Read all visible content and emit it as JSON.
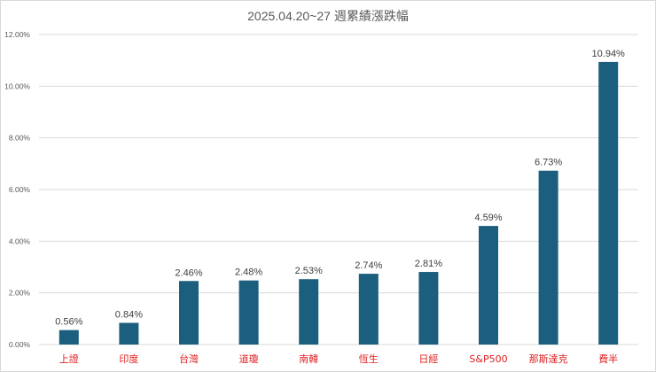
{
  "chart_data": {
    "type": "bar",
    "title": "2025.04.20~27 週累績漲跌幅",
    "categories": [
      "上證",
      "印度",
      "台灣",
      "道瓊",
      "南韓",
      "恆生",
      "日經",
      "S&P500",
      "那斯達克",
      "費半"
    ],
    "values": [
      0.56,
      0.84,
      2.46,
      2.48,
      2.53,
      2.74,
      2.81,
      4.59,
      6.73,
      10.94
    ],
    "value_labels": [
      "0.56%",
      "0.84%",
      "2.46%",
      "2.48%",
      "2.53%",
      "2.74%",
      "2.81%",
      "4.59%",
      "6.73%",
      "10.94%"
    ],
    "y_ticks": [
      "0.00%",
      "2.00%",
      "4.00%",
      "6.00%",
      "8.00%",
      "10.00%",
      "12.00%"
    ],
    "y_tick_values": [
      0,
      2,
      4,
      6,
      8,
      10,
      12
    ],
    "ylim": [
      0,
      12
    ],
    "xlabel": "",
    "ylabel": "",
    "grid": true,
    "legend": "none",
    "colors": {
      "bar": "#1b5e7e",
      "category_label": "#e02020",
      "gridline": "#d9d9d9",
      "text": "#595959"
    }
  }
}
